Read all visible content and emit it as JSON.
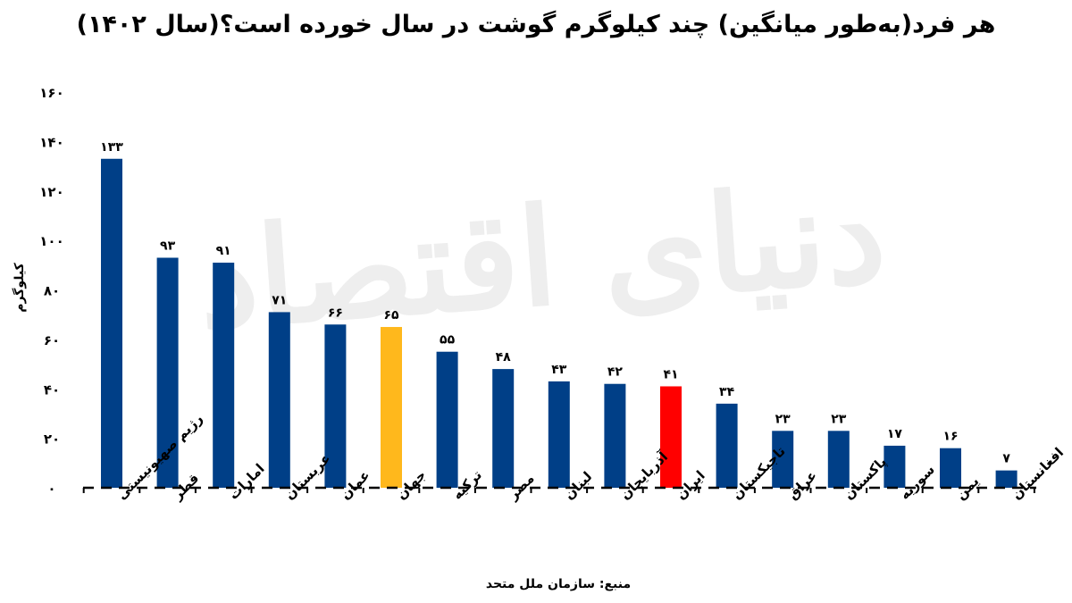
{
  "chart_data": {
    "type": "bar",
    "title": "هر فرد(به‌طور میانگین) چند کیلوگرم گوشت در سال خورده است؟(سال ۱۴۰۲)",
    "ylabel": "کیلوگرم",
    "xlabel": "",
    "ylim": [
      0,
      160
    ],
    "yticks": [
      0,
      20,
      40,
      60,
      80,
      100,
      120,
      140,
      160
    ],
    "ytick_labels": [
      "۰",
      "۲۰",
      "۴۰",
      "۶۰",
      "۸۰",
      "۱۰۰",
      "۱۲۰",
      "۱۴۰",
      "۱۶۰"
    ],
    "categories": [
      "رژیم صهیونیستی",
      "قطر",
      "امارات",
      "عربستان",
      "عمان",
      "جهان",
      "ترکیه",
      "مصر",
      "لبنان",
      "آذربایجان",
      "ایران",
      "تاجیکستان",
      "عراق",
      "پاکستان",
      "سوریه",
      "یمن",
      "افغانستان"
    ],
    "values": [
      133,
      93,
      91,
      71,
      66,
      65,
      55,
      48,
      43,
      42,
      41,
      34,
      23,
      23,
      17,
      16,
      7
    ],
    "value_labels": [
      "۱۳۳",
      "۹۳",
      "۹۱",
      "۷۱",
      "۶۶",
      "۶۵",
      "۵۵",
      "۴۸",
      "۴۳",
      "۴۲",
      "۴۱",
      "۳۴",
      "۲۳",
      "۲۳",
      "۱۷",
      "۱۶",
      "۷"
    ],
    "colors": {
      "default": "#003f87",
      "highlight_world": "#ffb81c",
      "highlight_iran": "#ff0000"
    },
    "highlights": {
      "جهان": "highlight_world",
      "ایران": "highlight_iran"
    },
    "grid": false,
    "legend": "none",
    "source": "منبع: سازمان ملل متحد",
    "watermark": "دنیای اقتصاد"
  }
}
